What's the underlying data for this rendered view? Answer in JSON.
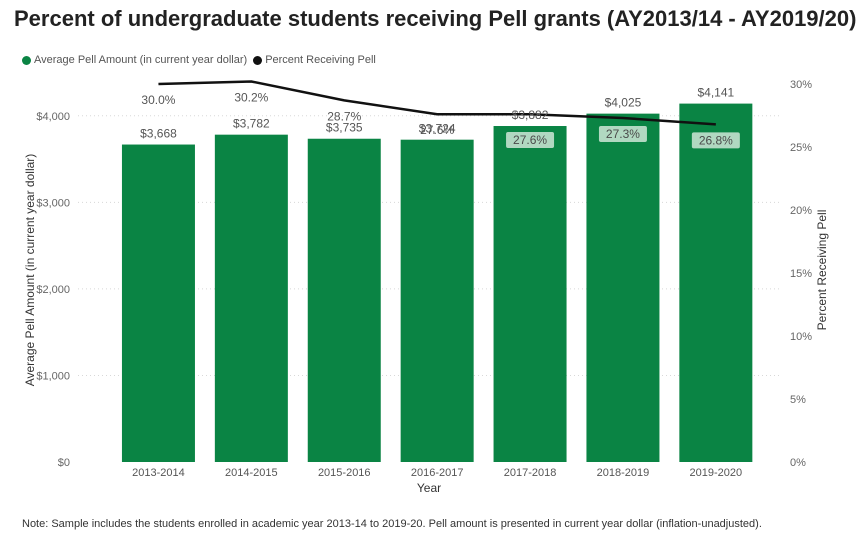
{
  "title": "Percent of undergraduate students receiving Pell grants (AY2013/14 - AY2019/20)",
  "note": "Note: Sample includes the students enrolled in academic year 2013-14 to 2019-20. Pell amount is presented in current year dollar (inflation-unadjusted).",
  "colors": {
    "bar": "#0a8444",
    "line": "#111111",
    "grid": "#d8d8d8"
  },
  "chart_data": {
    "type": "bar",
    "categories": [
      "2013-2014",
      "2014-2015",
      "2015-2016",
      "2016-2017",
      "2017-2018",
      "2018-2019",
      "2019-2020"
    ],
    "xlabel": "Year",
    "ylabel": "Average Pell Amount (in current year dollar)",
    "y2label": "Percent Receiving Pell",
    "ylim": [
      0,
      4200
    ],
    "y2lim": [
      0,
      30
    ],
    "yticks": [
      "$0",
      "$1,000",
      "$2,000",
      "$3,000",
      "$4,000"
    ],
    "y2ticks": [
      "0%",
      "5%",
      "10%",
      "15%",
      "20%",
      "25%",
      "30%"
    ],
    "legend_position": "top-left",
    "grid": true,
    "series": [
      {
        "name": "Average Pell Amount (in current year dollar)",
        "type": "bar",
        "values": [
          3668,
          3782,
          3735,
          3724,
          3882,
          4025,
          4141
        ],
        "labels": [
          "$3,668",
          "$3,782",
          "$3,735",
          "$3,724",
          "$3,882",
          "$4,025",
          "$4,141"
        ]
      },
      {
        "name": "Percent Receiving Pell",
        "type": "line",
        "axis": "right",
        "values": [
          30.0,
          30.2,
          28.7,
          27.6,
          27.6,
          27.3,
          26.8
        ],
        "labels": [
          "30.0%",
          "30.2%",
          "28.7%",
          "27.6%",
          "27.6%",
          "27.3%",
          "26.8%"
        ]
      }
    ]
  }
}
